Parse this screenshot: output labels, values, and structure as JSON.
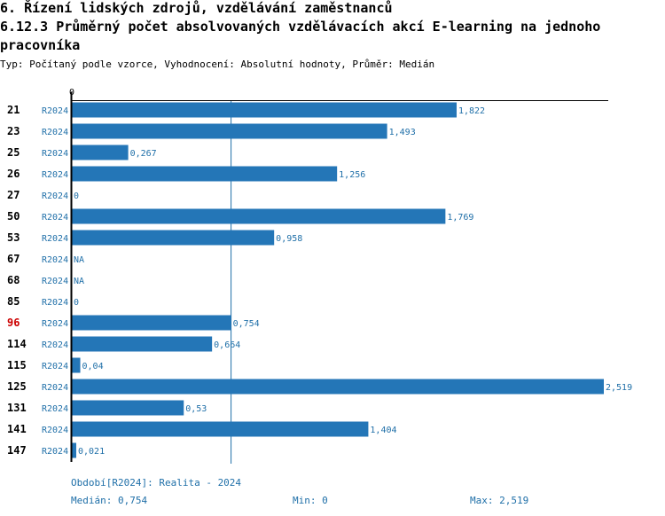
{
  "header": {
    "title": "6. Řízení lidských zdrojů, vzdělávání zaměstnanců",
    "subtitle": "6.12.3 Průměrný počet absolvovaných vzdělávacích akcí E-learning na jednoho pracovníka",
    "type_line": "Typ: Počítaný podle vzorce, Vyhodnocení: Absolutní hodnoty, Průměr: Medián"
  },
  "colors": {
    "bar": "#2476b7",
    "label": "#1f6fa8",
    "highlight": "#cc0000",
    "median_line": "#1f6fa8"
  },
  "chart_data": {
    "type": "bar",
    "orientation": "horizontal",
    "x_tick_labels": [
      "0"
    ],
    "xlim": [
      0,
      2.519
    ],
    "categories": [
      "21",
      "23",
      "25",
      "26",
      "27",
      "50",
      "53",
      "67",
      "68",
      "85",
      "96",
      "114",
      "115",
      "125",
      "131",
      "141",
      "147"
    ],
    "highlighted_category": "96",
    "series": [
      {
        "name": "R2024",
        "values": [
          1.822,
          1.493,
          0.267,
          1.256,
          0,
          1.769,
          0.958,
          null,
          null,
          0,
          0.754,
          0.664,
          0.04,
          2.519,
          0.53,
          1.404,
          0.021
        ],
        "labels": [
          "1,822",
          "1,493",
          "0,267",
          "1,256",
          "0",
          "1,769",
          "0,958",
          "NA",
          "NA",
          "0",
          "0,754",
          "0,664",
          "0,04",
          "2,519",
          "0,53",
          "1,404",
          "0,021"
        ]
      }
    ],
    "median": 0.754
  },
  "footer": {
    "period": "Období[R2024]: Realita - 2024",
    "median": "Medián: 0,754",
    "min": "Min: 0",
    "max": "Max: 2,519"
  }
}
